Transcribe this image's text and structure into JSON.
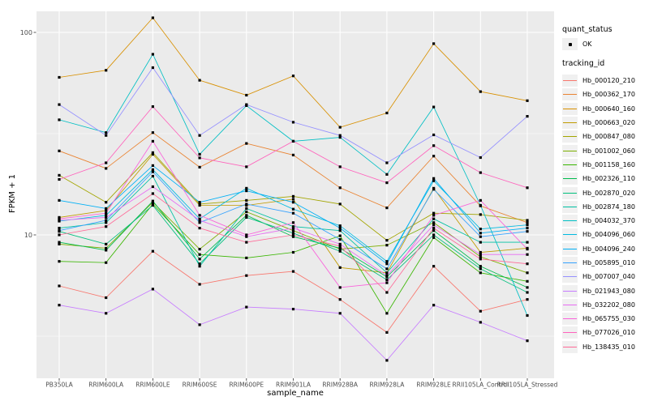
{
  "figure": {
    "background": "#FFFFFF",
    "panel_background": "#EBEBEB",
    "grid_color": "#FFFFFF",
    "tick_text_color": "#4D4D4D",
    "tick_mark_color": "#333333",
    "point_color": "#000000"
  },
  "legend": {
    "quant_status_title": "quant_status",
    "quant_status_items": [
      {
        "label": "OK",
        "marker": "black-point"
      }
    ],
    "tracking_title": "tracking_id"
  },
  "chart_data": {
    "type": "line",
    "title": "",
    "xlabel": "sample_name",
    "ylabel": "FPKM + 1",
    "y_scale": "log10",
    "ylim": [
      1.9,
      140
    ],
    "y_ticks": [
      100,
      10
    ],
    "y_minor_ticks": [
      31.62,
      3.162
    ],
    "grid": true,
    "legend_position": "right",
    "point_marker": {
      "shape": "square",
      "color": "#000000",
      "meaning": "quant_status OK"
    },
    "categories": [
      "PB350LA",
      "RRIM600LA",
      "RRIM600LE",
      "RRIM600SE",
      "RRIM600PE",
      "RRIM901LA",
      "RRIM928BA",
      "RRIM928LA",
      "RRIM928LE",
      "RRII105LA_Control",
      "RRII105LA_Stressed"
    ],
    "series": [
      {
        "name": "Hb_000120_210",
        "color": "#F8766D",
        "values": [
          5.6,
          4.9,
          8.3,
          5.7,
          6.3,
          6.6,
          4.8,
          3.3,
          7.0,
          4.2,
          4.8
        ]
      },
      {
        "name": "Hb_000362_170",
        "color": "#EA8331",
        "values": [
          26.0,
          21.3,
          32.0,
          21.6,
          28.3,
          24.8,
          17.1,
          13.6,
          24.5,
          13.9,
          11.5
        ]
      },
      {
        "name": "Hb_000640_160",
        "color": "#D89000",
        "values": [
          60,
          65,
          118,
          58,
          49,
          61,
          34,
          40,
          88,
          51,
          46
        ]
      },
      {
        "name": "Hb_000663_020",
        "color": "#C09B00",
        "values": [
          12.2,
          13.2,
          25.0,
          14.0,
          14.0,
          15.0,
          6.9,
          6.5,
          17.0,
          8.2,
          8.6
        ]
      },
      {
        "name": "Hb_000847_080",
        "color": "#A3A500",
        "values": [
          19.7,
          14.5,
          25.5,
          14.2,
          14.8,
          15.5,
          14.2,
          9.4,
          12.8,
          12.6,
          11.8
        ]
      },
      {
        "name": "Hb_001002_060",
        "color": "#7CAE00",
        "values": [
          9.0,
          8.6,
          14.5,
          8.5,
          13.0,
          10.5,
          8.5,
          8.9,
          11.5,
          7.8,
          6.5
        ]
      },
      {
        "name": "Hb_001158_160",
        "color": "#39B600",
        "values": [
          7.4,
          7.3,
          14.2,
          8.0,
          7.7,
          8.2,
          9.9,
          4.1,
          9.7,
          6.5,
          5.9
        ]
      },
      {
        "name": "Hb_002326_110",
        "color": "#00BB4E",
        "values": [
          9.2,
          8.4,
          14.7,
          7.6,
          12.5,
          9.8,
          8.6,
          6.2,
          10.5,
          7.0,
          5.5
        ]
      },
      {
        "name": "Hb_002870_020",
        "color": "#00BF7D",
        "values": [
          10.4,
          9.0,
          14.0,
          7.2,
          12.2,
          10.2,
          8.3,
          6.0,
          10.0,
          6.8,
          5.2
        ]
      },
      {
        "name": "Hb_002874_180",
        "color": "#00C1A3",
        "values": [
          10.8,
          11.5,
          19.5,
          7.0,
          13.5,
          11.0,
          10.5,
          6.5,
          12.0,
          9.2,
          9.2
        ]
      },
      {
        "name": "Hb_004032_370",
        "color": "#00BFC4",
        "values": [
          37.0,
          32.0,
          78.0,
          25.0,
          43.5,
          29.0,
          30.3,
          19.9,
          42.8,
          14.0,
          4.0
        ]
      },
      {
        "name": "Hb_004096_060",
        "color": "#00BAE0",
        "values": [
          11.7,
          12.5,
          21.0,
          12.0,
          17.0,
          13.4,
          11.1,
          7.4,
          18.5,
          10.7,
          11.2
        ]
      },
      {
        "name": "Hb_004096_240",
        "color": "#00B0F6",
        "values": [
          14.8,
          13.5,
          22.0,
          14.5,
          16.5,
          14.5,
          10.8,
          7.2,
          19.0,
          10.2,
          10.8
        ]
      },
      {
        "name": "Hb_005895_010",
        "color": "#35A2FF",
        "values": [
          10.5,
          11.8,
          20.5,
          11.5,
          14.2,
          12.8,
          9.5,
          6.8,
          16.8,
          9.8,
          10.4
        ]
      },
      {
        "name": "Hb_007007_040",
        "color": "#9590FF",
        "values": [
          44,
          31,
          67,
          31,
          44,
          36,
          31,
          22.7,
          31.2,
          24.1,
          38.5
        ]
      },
      {
        "name": "Hb_021943_080",
        "color": "#C77CFF",
        "values": [
          4.5,
          4.1,
          5.4,
          3.6,
          4.4,
          4.3,
          4.1,
          2.4,
          4.5,
          3.7,
          3.0
        ]
      },
      {
        "name": "Hb_032202_080",
        "color": "#E76BF3",
        "values": [
          11.8,
          12.2,
          17.3,
          11.8,
          9.8,
          10.8,
          9.0,
          6.3,
          11.2,
          8.0,
          8.0
        ]
      },
      {
        "name": "Hb_065755_030",
        "color": "#FA62DB",
        "values": [
          12.0,
          12.8,
          29.0,
          12.5,
          10.0,
          11.5,
          5.5,
          5.8,
          12.5,
          14.8,
          8.5
        ]
      },
      {
        "name": "Hb_077026_010",
        "color": "#FF62BC",
        "values": [
          18.8,
          22.7,
          43.0,
          24.0,
          21.7,
          29.0,
          21.7,
          18.1,
          27.6,
          20.3,
          17.1
        ]
      },
      {
        "name": "Hb_138435_010",
        "color": "#FF6A98",
        "values": [
          10.0,
          11.0,
          16.0,
          10.8,
          9.2,
          10.0,
          8.8,
          5.2,
          10.8,
          7.6,
          7.2
        ]
      }
    ]
  }
}
